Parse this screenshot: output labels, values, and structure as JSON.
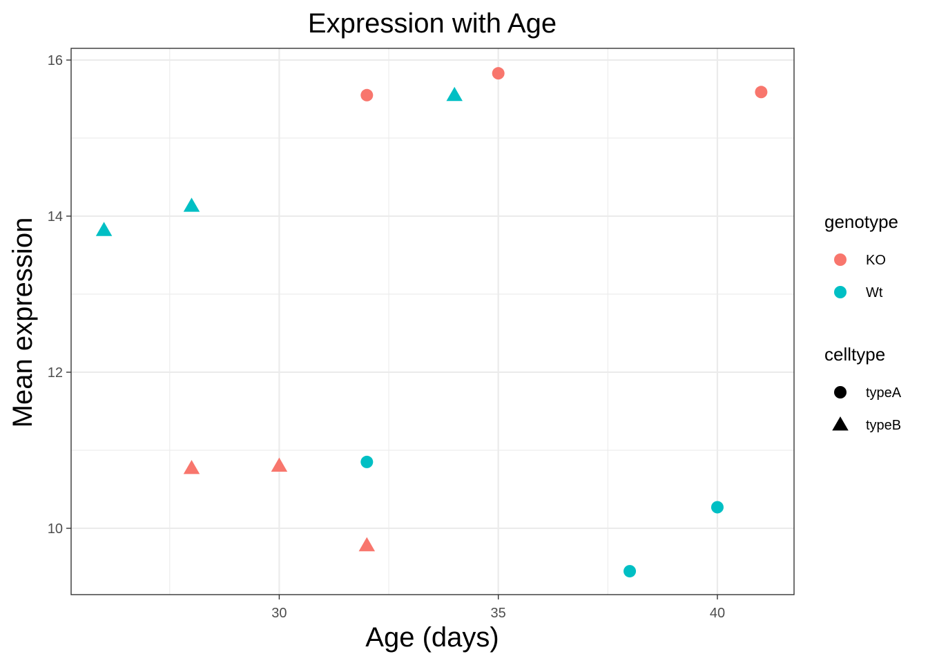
{
  "chart_data": {
    "type": "scatter",
    "title": "Expression with Age",
    "xlabel": "Age (days)",
    "ylabel": "Mean expression",
    "xlim": [
      25.25,
      41.75
    ],
    "ylim": [
      9.15,
      16.15
    ],
    "x_ticks": [
      30,
      35,
      40
    ],
    "x_tick_labels": [
      "30",
      "35",
      "40"
    ],
    "y_ticks": [
      10,
      12,
      14,
      16
    ],
    "y_tick_labels": [
      "10",
      "12",
      "14",
      "16"
    ],
    "grid": true,
    "legend_position": "right",
    "legends": [
      {
        "title": "genotype",
        "kind": "color",
        "entries": [
          {
            "label": "KO",
            "color": "#F8766D"
          },
          {
            "label": "Wt",
            "color": "#00BFC4"
          }
        ]
      },
      {
        "title": "celltype",
        "kind": "shape",
        "entries": [
          {
            "label": "typeA",
            "shape": "circle"
          },
          {
            "label": "typeB",
            "shape": "triangle"
          }
        ]
      }
    ],
    "points": [
      {
        "x": 26,
        "y": 13.82,
        "genotype": "Wt",
        "celltype": "typeB"
      },
      {
        "x": 28,
        "y": 14.13,
        "genotype": "Wt",
        "celltype": "typeB"
      },
      {
        "x": 34,
        "y": 15.55,
        "genotype": "Wt",
        "celltype": "typeB"
      },
      {
        "x": 32,
        "y": 10.85,
        "genotype": "Wt",
        "celltype": "typeA"
      },
      {
        "x": 38,
        "y": 9.45,
        "genotype": "Wt",
        "celltype": "typeA"
      },
      {
        "x": 40,
        "y": 10.27,
        "genotype": "Wt",
        "celltype": "typeA"
      },
      {
        "x": 32,
        "y": 15.55,
        "genotype": "KO",
        "celltype": "typeA"
      },
      {
        "x": 35,
        "y": 15.83,
        "genotype": "KO",
        "celltype": "typeA"
      },
      {
        "x": 41,
        "y": 15.59,
        "genotype": "KO",
        "celltype": "typeA"
      },
      {
        "x": 28,
        "y": 10.77,
        "genotype": "KO",
        "celltype": "typeB"
      },
      {
        "x": 30,
        "y": 10.8,
        "genotype": "KO",
        "celltype": "typeB"
      },
      {
        "x": 32,
        "y": 9.78,
        "genotype": "KO",
        "celltype": "typeB"
      }
    ]
  },
  "colors": {
    "KO": "#F8766D",
    "Wt": "#00BFC4",
    "grid_major": "#ebebeb",
    "panel_border": "#333333",
    "tick_text": "#4d4d4d"
  }
}
